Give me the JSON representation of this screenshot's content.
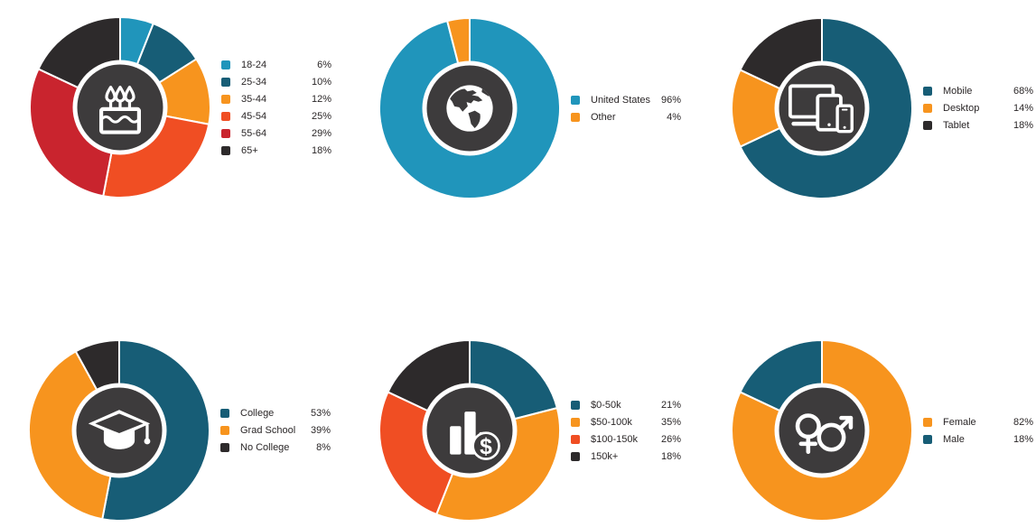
{
  "palette": {
    "cyan": "#2095bb",
    "teal": "#175d76",
    "orange": "#f7941e",
    "vermilion": "#f04e23",
    "crimson": "#c9242e",
    "charcoal": "#2d2a2b",
    "center_circle": "#3d3b3c",
    "ring": "#ffffff",
    "slice_gap": "#ffffff",
    "icon_color": "#ffffff",
    "legend_text": "#2a2627"
  },
  "chart_data": [
    {
      "type": "pie",
      "name": "age",
      "icon": "birthday-cake-icon",
      "donut": true,
      "start": "top",
      "direction": "clockwise",
      "legend_position": "right",
      "categories": [
        "18-24",
        "25-34",
        "35-44",
        "45-54",
        "55-64",
        "65+"
      ],
      "values": [
        6,
        10,
        12,
        25,
        29,
        18
      ],
      "value_labels": [
        "6%",
        "10%",
        "12%",
        "25%",
        "29%",
        "18%"
      ],
      "colors": [
        "cyan",
        "teal",
        "orange",
        "vermilion",
        "crimson",
        "charcoal"
      ]
    },
    {
      "type": "pie",
      "name": "location",
      "icon": "globe-icon",
      "donut": true,
      "start": "top",
      "direction": "clockwise",
      "legend_position": "right",
      "categories": [
        "United States",
        "Other"
      ],
      "values": [
        96,
        4
      ],
      "value_labels": [
        "96%",
        "4%"
      ],
      "colors": [
        "cyan",
        "orange"
      ]
    },
    {
      "type": "pie",
      "name": "device",
      "icon": "devices-icon",
      "donut": true,
      "start": "top",
      "direction": "clockwise",
      "legend_position": "right",
      "categories": [
        "Mobile",
        "Desktop",
        "Tablet"
      ],
      "values": [
        68,
        14,
        18
      ],
      "value_labels": [
        "68%",
        "14%",
        "18%"
      ],
      "colors": [
        "teal",
        "orange",
        "charcoal"
      ]
    },
    {
      "type": "pie",
      "name": "education",
      "icon": "graduation-cap-icon",
      "donut": true,
      "start": "top",
      "direction": "clockwise",
      "legend_position": "right",
      "categories": [
        "College",
        "Grad School",
        "No College"
      ],
      "values": [
        53,
        39,
        8
      ],
      "value_labels": [
        "53%",
        "39%",
        "8%"
      ],
      "colors": [
        "teal",
        "orange",
        "charcoal"
      ]
    },
    {
      "type": "pie",
      "name": "income",
      "icon": "income-bars-dollar-icon",
      "donut": true,
      "start": "top",
      "direction": "clockwise",
      "legend_position": "right",
      "categories": [
        "$0-50k",
        "$50-100k",
        "$100-150k",
        "150k+"
      ],
      "values": [
        21,
        35,
        26,
        18
      ],
      "value_labels": [
        "21%",
        "35%",
        "26%",
        "18%"
      ],
      "colors": [
        "teal",
        "orange",
        "vermilion",
        "charcoal"
      ]
    },
    {
      "type": "pie",
      "name": "gender",
      "icon": "gender-symbols-icon",
      "donut": true,
      "start": "top",
      "direction": "clockwise",
      "legend_position": "right",
      "categories": [
        "Female",
        "Male"
      ],
      "values": [
        82,
        18
      ],
      "value_labels": [
        "82%",
        "18%"
      ],
      "colors": [
        "orange",
        "teal"
      ]
    }
  ]
}
